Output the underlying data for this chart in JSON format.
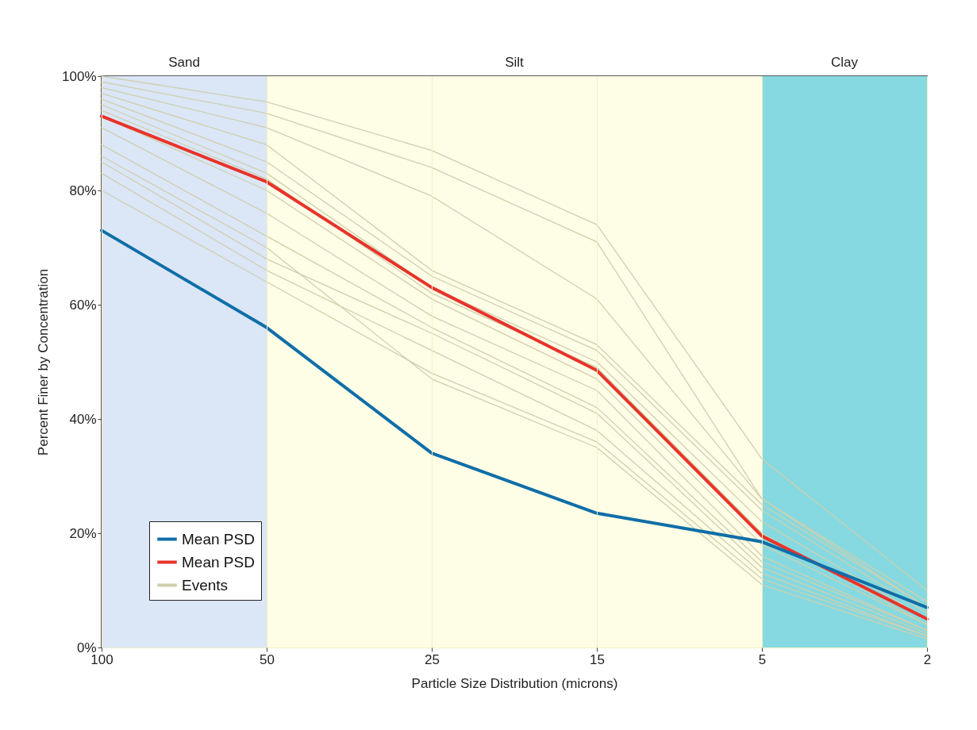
{
  "chart_data": {
    "type": "line",
    "xlabel": "Particle Size Distribution (microns)",
    "ylabel": "Percent Finer by Concentration",
    "categories": [
      "100",
      "50",
      "25",
      "15",
      "5",
      "2"
    ],
    "ylim": [
      0,
      100
    ],
    "yticks": [
      {
        "value": 0,
        "label": "0%"
      },
      {
        "value": 20,
        "label": "20%"
      },
      {
        "value": 40,
        "label": "40%"
      },
      {
        "value": 60,
        "label": "60%"
      },
      {
        "value": 80,
        "label": "80%"
      },
      {
        "value": 100,
        "label": "100%"
      }
    ],
    "grid": true,
    "legend": "bottom left",
    "line_style": "solid",
    "bands": [
      {
        "axis": "x",
        "from": "100",
        "to": "50",
        "label": "Sand",
        "color": "#dbe6f7"
      },
      {
        "axis": "x",
        "from": "50",
        "to": "5",
        "label": "Silt",
        "color": "#fefde6"
      },
      {
        "axis": "x",
        "from": "5",
        "to": "2",
        "label": "Clay",
        "color": "#86d9e0"
      }
    ],
    "series": [
      {
        "name": "Events",
        "color": "#cfcfae",
        "values": [
          100,
          95.5,
          87,
          74,
          33,
          10
        ]
      },
      {
        "color": "#cfcfae",
        "values": [
          99,
          93.5,
          84,
          71,
          26,
          8
        ]
      },
      {
        "color": "#cfcfae",
        "values": [
          98,
          91,
          79,
          61,
          26,
          7
        ]
      },
      {
        "color": "#cfcfae",
        "values": [
          97,
          88,
          66,
          53,
          25,
          7
        ]
      },
      {
        "color": "#cfcfae",
        "values": [
          96,
          85,
          65,
          52,
          24,
          6
        ]
      },
      {
        "color": "#cfcfae",
        "values": [
          95,
          83,
          63,
          50,
          22,
          5
        ]
      },
      {
        "color": "#cfcfae",
        "values": [
          94,
          82,
          62,
          49,
          20,
          4
        ]
      },
      {
        "color": "#cfcfae",
        "values": [
          93,
          80,
          61,
          47,
          18,
          4
        ]
      },
      {
        "color": "#cfcfae",
        "values": [
          91,
          76,
          58,
          45,
          16,
          3
        ]
      },
      {
        "color": "#cfcfae",
        "values": [
          88,
          72,
          56,
          42,
          15,
          3
        ]
      },
      {
        "color": "#cfcfae",
        "values": [
          86,
          70,
          47,
          35,
          11,
          1.5
        ]
      },
      {
        "color": "#cfcfae",
        "values": [
          85,
          68,
          55,
          41,
          14,
          2.5
        ]
      },
      {
        "color": "#cfcfae",
        "values": [
          83,
          66,
          52,
          38,
          13,
          2
        ]
      },
      {
        "color": "#cfcfae",
        "values": [
          80,
          64,
          48,
          36,
          12,
          2
        ]
      },
      {
        "name": "Mean PSD",
        "color": "#e8332a",
        "values": [
          93,
          81.5,
          63,
          48.5,
          19.5,
          5
        ]
      },
      {
        "name": "Mean PSD",
        "color": "#0e6ea8",
        "values": [
          73,
          56,
          34,
          23.5,
          18.5,
          7
        ]
      }
    ]
  }
}
